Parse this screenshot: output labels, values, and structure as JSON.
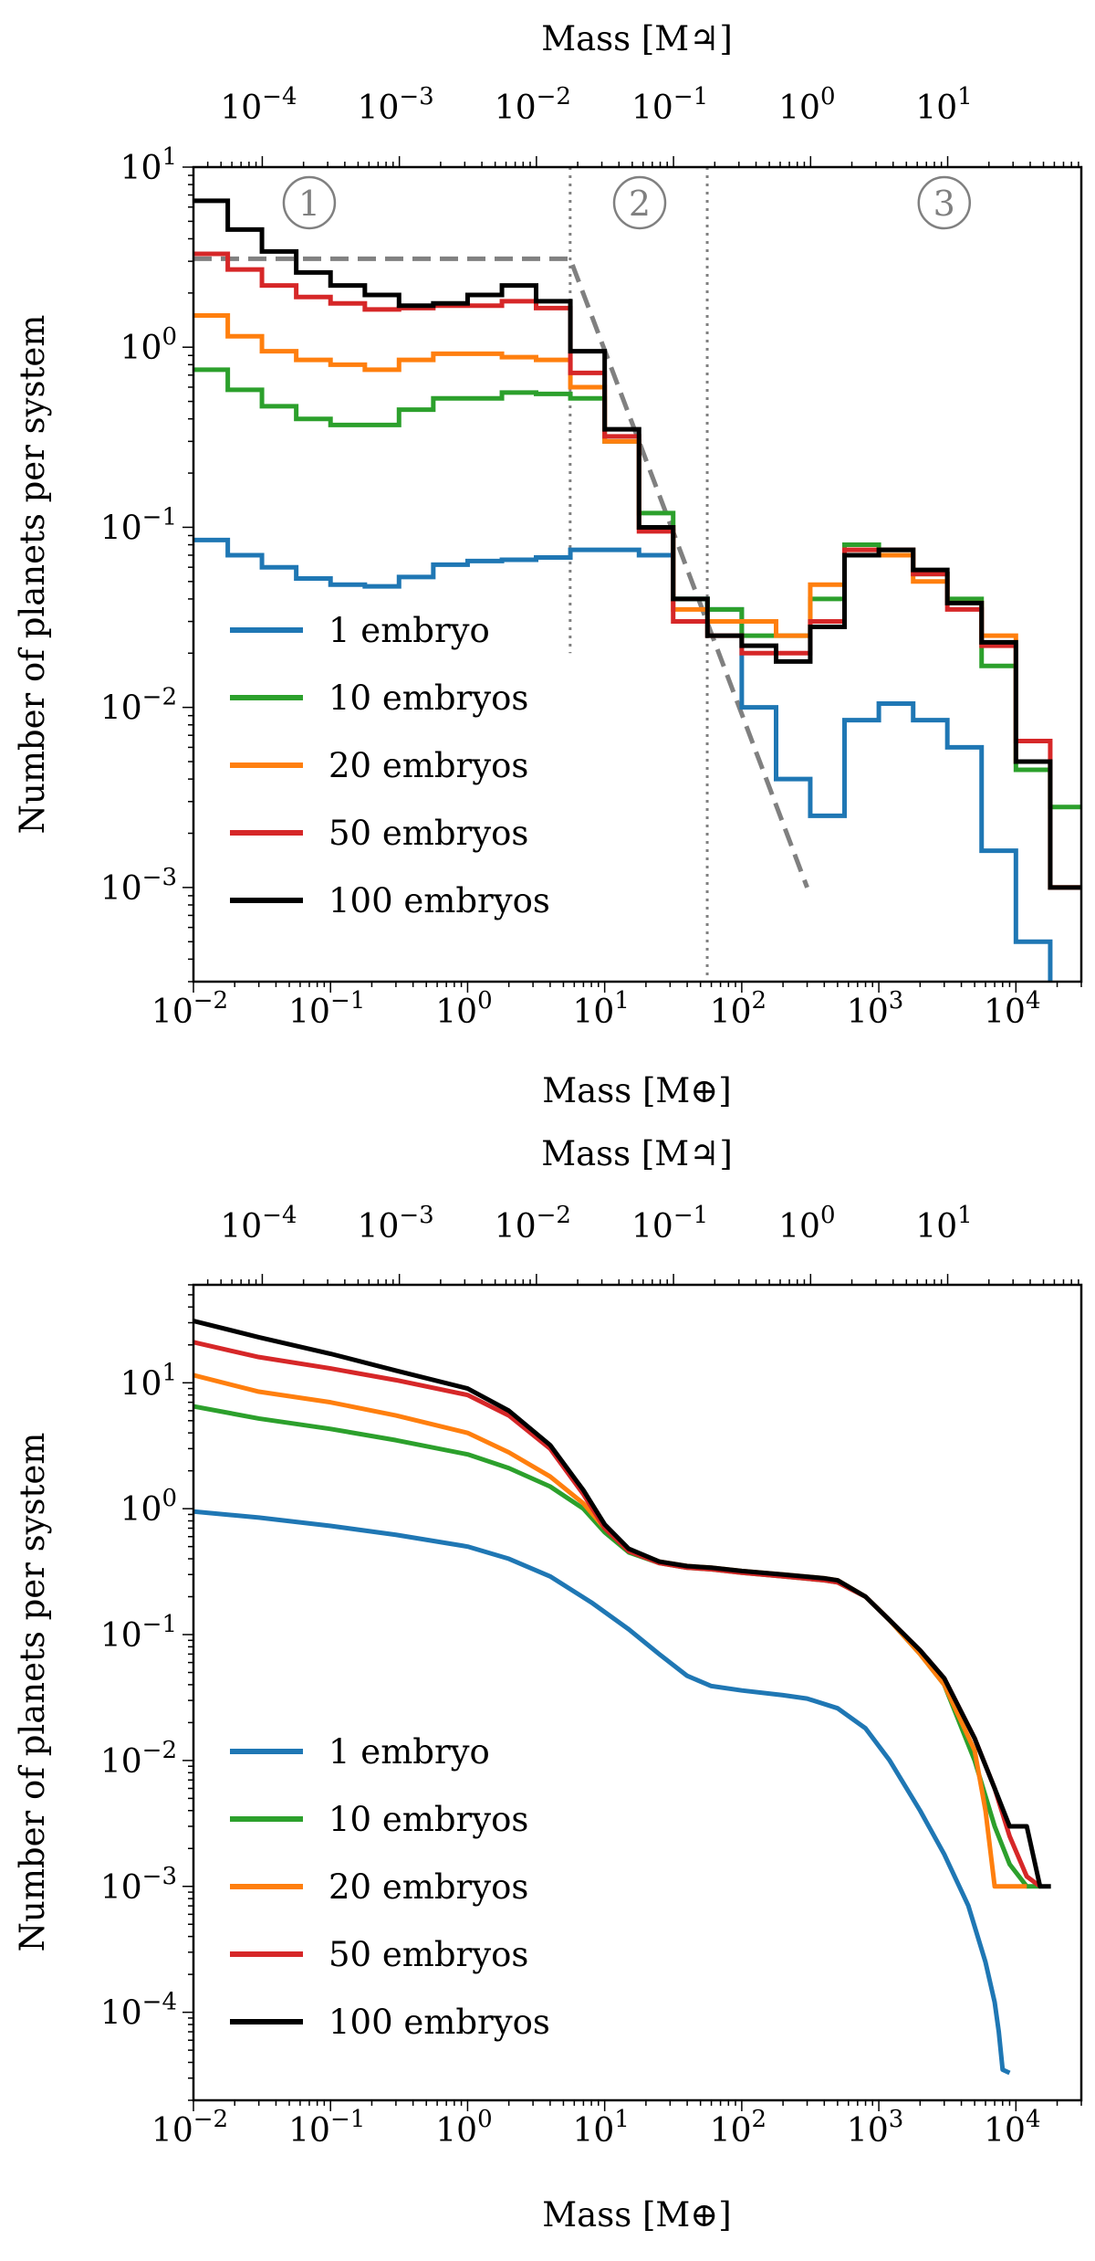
{
  "chart_data": [
    {
      "type": "line",
      "step": true,
      "title": "",
      "xlabel": "Mass [M⊕]",
      "ylabel": "Number of planets per system",
      "top_xlabel": "Mass [M♃]",
      "xscale": "log",
      "yscale": "log",
      "xlim": [
        0.01,
        30000
      ],
      "ylim": [
        0.0003,
        10
      ],
      "bin_edges": [
        0.01,
        0.0178,
        0.0316,
        0.0562,
        0.1,
        0.178,
        0.316,
        0.562,
        1,
        1.78,
        3.16,
        5.62,
        10,
        17.8,
        31.6,
        56.2,
        100,
        178,
        316,
        562,
        1000,
        1780,
        3160,
        5620,
        10000,
        17800,
        31600
      ],
      "series": [
        {
          "name": "1 embryo",
          "color": "#1f77b4",
          "values": [
            0.085,
            0.07,
            0.06,
            0.052,
            0.048,
            0.047,
            0.053,
            0.062,
            0.065,
            0.066,
            0.068,
            0.075,
            0.075,
            0.07,
            0.04,
            0.035,
            0.01,
            0.004,
            0.0025,
            0.0085,
            0.0105,
            0.0085,
            0.006,
            0.0016,
            0.0005,
            null
          ]
        },
        {
          "name": "10 embryos",
          "color": "#2ca02c",
          "values": [
            0.75,
            0.58,
            0.47,
            0.4,
            0.37,
            0.37,
            0.45,
            0.52,
            0.52,
            0.56,
            0.55,
            0.52,
            0.3,
            0.12,
            0.04,
            0.035,
            0.025,
            0.025,
            0.04,
            0.08,
            0.075,
            0.055,
            0.04,
            0.017,
            0.0045,
            0.0028
          ]
        },
        {
          "name": "20 embryos",
          "color": "#ff7f0e",
          "values": [
            1.5,
            1.15,
            0.95,
            0.85,
            0.8,
            0.75,
            0.85,
            0.92,
            0.92,
            0.88,
            0.85,
            0.6,
            0.3,
            0.1,
            0.035,
            0.03,
            0.03,
            0.025,
            0.048,
            0.075,
            0.07,
            0.05,
            0.038,
            0.025,
            0.005,
            0.001
          ]
        },
        {
          "name": "50 embryos",
          "color": "#d62728",
          "values": [
            3.3,
            2.7,
            2.2,
            1.9,
            1.75,
            1.62,
            1.65,
            1.7,
            1.7,
            1.8,
            1.65,
            0.72,
            0.32,
            0.095,
            0.03,
            0.025,
            0.02,
            0.02,
            0.03,
            0.075,
            0.075,
            0.055,
            0.035,
            0.022,
            0.0065,
            0.001
          ]
        },
        {
          "name": "100 embryos",
          "color": "#000000",
          "values": [
            6.5,
            4.5,
            3.4,
            2.6,
            2.2,
            1.95,
            1.7,
            1.75,
            1.95,
            2.2,
            1.8,
            0.95,
            0.35,
            0.1,
            0.04,
            0.025,
            0.022,
            0.018,
            0.028,
            0.07,
            0.075,
            0.058,
            0.038,
            0.023,
            0.005,
            0.001
          ]
        }
      ],
      "reference_line": {
        "style": "dashed",
        "color": "#808080",
        "x": [
          0.01,
          5.6,
          300
        ],
        "y": [
          3.1,
          3.1,
          0.001
        ]
      },
      "regions": [
        {
          "label": "1",
          "x_center": 0.07
        },
        {
          "label": "2",
          "x_center": 18
        },
        {
          "label": "3",
          "x_center": 3000
        }
      ],
      "region_dividers": {
        "x": [
          5.6,
          56
        ],
        "y_bottom": 0.02
      },
      "legend_location": "lower-left"
    },
    {
      "type": "line",
      "title": "",
      "xlabel": "Mass [M⊕]",
      "ylabel": "Number of planets per system",
      "top_xlabel": "Mass [M♃]",
      "xscale": "log",
      "yscale": "log",
      "xlim": [
        0.01,
        30000
      ],
      "ylim": [
        2e-05,
        60
      ],
      "series": [
        {
          "name": "1 embryo",
          "color": "#1f77b4",
          "x": [
            0.01,
            0.03,
            0.1,
            0.3,
            1,
            2,
            4,
            8,
            15,
            25,
            40,
            60,
            100,
            200,
            300,
            500,
            800,
            1200,
            2000,
            3000,
            4500,
            6000,
            7000,
            7500,
            8000,
            9000
          ],
          "y": [
            0.95,
            0.85,
            0.73,
            0.62,
            0.5,
            0.4,
            0.29,
            0.18,
            0.11,
            0.07,
            0.047,
            0.039,
            0.036,
            0.033,
            0.031,
            0.026,
            0.018,
            0.01,
            0.004,
            0.0018,
            0.0007,
            0.00025,
            0.00012,
            7e-05,
            3.5e-05,
            3.3e-05
          ]
        },
        {
          "name": "10 embryos",
          "color": "#2ca02c",
          "x": [
            0.01,
            0.03,
            0.1,
            0.3,
            1,
            2,
            4,
            7,
            10,
            15,
            25,
            40,
            60,
            100,
            200,
            400,
            500,
            800,
            1200,
            2000,
            3000,
            5000,
            7000,
            9000,
            12000,
            15000
          ],
          "y": [
            6.5,
            5.2,
            4.3,
            3.5,
            2.7,
            2.1,
            1.5,
            1.0,
            0.65,
            0.45,
            0.37,
            0.34,
            0.33,
            0.31,
            0.29,
            0.27,
            0.26,
            0.2,
            0.13,
            0.07,
            0.04,
            0.01,
            0.003,
            0.0015,
            0.001,
            0.001
          ]
        },
        {
          "name": "20 embryos",
          "color": "#ff7f0e",
          "x": [
            0.01,
            0.03,
            0.1,
            0.3,
            1,
            2,
            4,
            7,
            10,
            15,
            25,
            40,
            60,
            100,
            200,
            400,
            500,
            800,
            1200,
            2000,
            3000,
            5000,
            6000,
            7000,
            9000,
            12000
          ],
          "y": [
            11.5,
            8.5,
            7.0,
            5.5,
            4.0,
            2.8,
            1.8,
            1.1,
            0.7,
            0.47,
            0.38,
            0.35,
            0.34,
            0.32,
            0.3,
            0.28,
            0.27,
            0.2,
            0.13,
            0.07,
            0.04,
            0.012,
            0.004,
            0.001,
            0.001,
            0.001
          ]
        },
        {
          "name": "50 embryos",
          "color": "#d62728",
          "x": [
            0.01,
            0.03,
            0.1,
            0.3,
            1,
            2,
            4,
            7,
            10,
            15,
            25,
            40,
            60,
            100,
            200,
            400,
            500,
            800,
            1200,
            2000,
            3000,
            5000,
            7000,
            9000,
            12000,
            15000
          ],
          "y": [
            21,
            16,
            13,
            10.5,
            8,
            5.5,
            3,
            1.3,
            0.7,
            0.46,
            0.37,
            0.34,
            0.33,
            0.31,
            0.29,
            0.27,
            0.26,
            0.2,
            0.13,
            0.075,
            0.045,
            0.015,
            0.006,
            0.0025,
            0.0012,
            0.001
          ]
        },
        {
          "name": "100 embryos",
          "color": "#000000",
          "x": [
            0.01,
            0.03,
            0.1,
            0.3,
            1,
            2,
            4,
            7,
            10,
            15,
            25,
            40,
            60,
            100,
            200,
            400,
            500,
            800,
            1200,
            2000,
            3000,
            5000,
            7000,
            9000,
            12000,
            15000,
            18000
          ],
          "y": [
            31,
            23,
            17,
            12.5,
            9,
            6,
            3.2,
            1.4,
            0.75,
            0.48,
            0.38,
            0.35,
            0.34,
            0.32,
            0.3,
            0.28,
            0.27,
            0.2,
            0.13,
            0.075,
            0.045,
            0.015,
            0.006,
            0.003,
            0.003,
            0.001,
            0.001
          ]
        }
      ],
      "legend_location": "lower-left"
    }
  ],
  "axes_text": {
    "top_xlabel": "Mass [M♃]",
    "bottom_xlabel": "Mass [M⊕]",
    "ylabel": "Number of planets per system",
    "earth_x_tick_exponents": [
      "−2",
      "−1",
      "0",
      "1",
      "2",
      "3",
      "4"
    ],
    "jupiter_x_tick_exponents": [
      "−4",
      "−3",
      "−2",
      "−1",
      "0",
      "1"
    ],
    "panel1_y_tick_exponents": [
      "1",
      "0",
      "−1",
      "−2",
      "−3"
    ],
    "panel2_y_tick_exponents": [
      "1",
      "0",
      "−1",
      "−2",
      "−3",
      "−4"
    ],
    "tick_base": "10"
  }
}
